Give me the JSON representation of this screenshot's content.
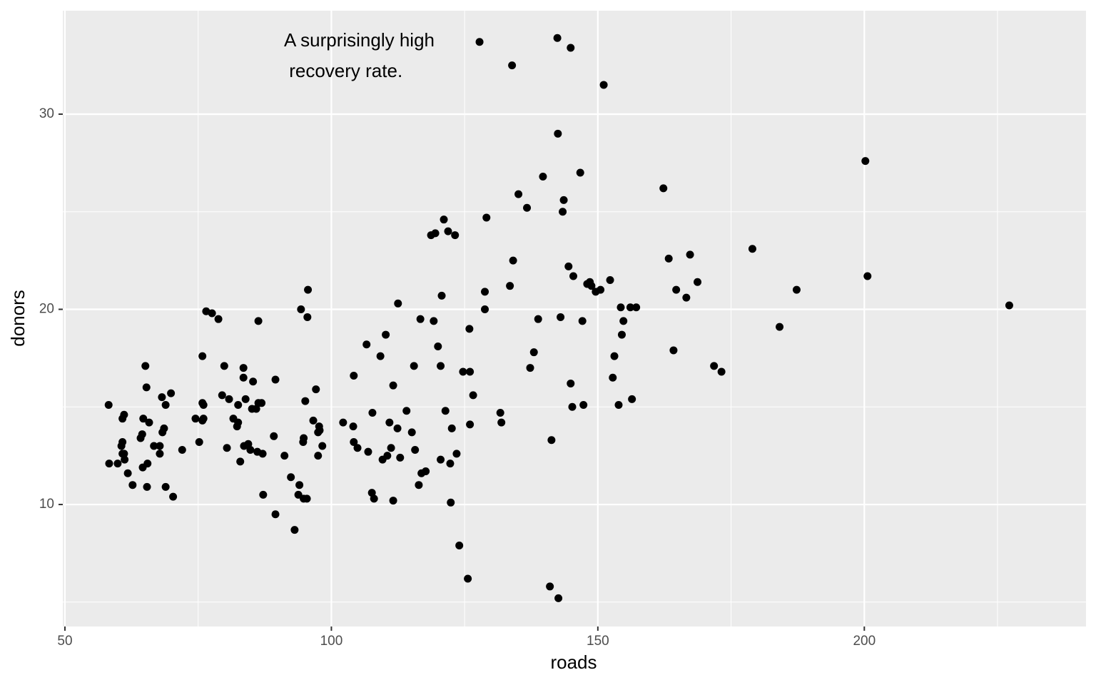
{
  "chart_data": {
    "type": "scatter",
    "x_label": "roads",
    "y_label": "donors",
    "annotation": [
      "A surprisingly high",
      " recovery rate."
    ],
    "color": "#000000",
    "grid": true,
    "xlim": [
      49.6,
      241.6
    ],
    "ylim": [
      3.75,
      35.3
    ],
    "xticks": [
      50,
      100,
      150,
      200
    ],
    "yticks": [
      10,
      20,
      30
    ],
    "xminor": [
      75,
      125,
      175,
      225
    ],
    "yminor": [
      5,
      15,
      25
    ],
    "x": [
      58.2,
      58.3,
      59.9,
      60.6,
      60.8,
      60.8,
      61.1,
      61.1,
      60.8,
      61.2,
      61.8,
      62.7,
      64.2,
      64.5,
      64.7,
      64.6,
      65.1,
      65.3,
      65.4,
      65.5,
      65.8,
      66.7,
      67.8,
      67.8,
      68.2,
      68.3,
      68.6,
      68.9,
      68.9,
      69.9,
      70.3,
      72.0,
      74.5,
      75.2,
      75.8,
      75.8,
      76.0,
      76.0,
      75.8,
      76.5,
      77.6,
      78.8,
      79.5,
      79.9,
      80.4,
      80.8,
      81.6,
      82.3,
      82.5,
      82.5,
      82.9,
      83.5,
      83.5,
      83.6,
      83.9,
      84.4,
      84.8,
      85.1,
      85.3,
      85.9,
      86.1,
      86.3,
      86.3,
      86.9,
      87.1,
      87.2,
      89.2,
      89.5,
      89.5,
      91.2,
      92.4,
      93.1,
      93.8,
      94.0,
      94.3,
      94.7,
      94.8,
      94.8,
      95.1,
      95.4,
      95.5,
      95.6,
      96.6,
      97.1,
      97.5,
      97.5,
      97.7,
      97.8,
      98.3,
      102.2,
      104.1,
      104.2,
      104.2,
      104.9,
      106.6,
      106.9,
      107.6,
      107.7,
      108.0,
      109.2,
      109.6,
      110.2,
      110.5,
      110.9,
      111.2,
      111.6,
      111.6,
      112.4,
      112.5,
      112.9,
      114.1,
      115.1,
      115.5,
      115.7,
      116.4,
      116.7,
      116.9,
      117.7,
      118.7,
      119.2,
      119.5,
      120.0,
      120.5,
      120.7,
      120.5,
      121.1,
      121.4,
      121.9,
      122.3,
      122.4,
      122.6,
      123.2,
      123.5,
      124.0,
      124.7,
      125.6,
      125.9,
      126.0,
      126.0,
      126.6,
      127.8,
      128.8,
      128.8,
      129.1,
      131.7,
      131.9,
      133.5,
      133.9,
      134.1,
      135.1,
      136.7,
      137.3,
      138.0,
      138.8,
      139.7,
      141.0,
      141.3,
      142.4,
      142.5,
      142.6,
      143.0,
      143.4,
      143.6,
      144.5,
      144.9,
      144.9,
      145.2,
      145.4,
      146.7,
      147.1,
      147.3,
      148.0,
      148.5,
      148.8,
      149.6,
      150.5,
      151.1,
      152.3,
      152.8,
      153.1,
      153.9,
      154.3,
      154.5,
      154.8,
      156.1,
      156.4,
      157.2,
      162.3,
      163.3,
      164.2,
      164.7,
      166.6,
      167.3,
      168.7,
      171.8,
      173.2,
      179.0,
      184.1,
      187.3,
      200.2,
      200.6,
      227.2
    ],
    "y": [
      15.1,
      12.1,
      12.1,
      13.0,
      13.2,
      12.6,
      12.6,
      14.6,
      14.4,
      12.3,
      11.6,
      11.0,
      13.4,
      13.6,
      14.4,
      11.9,
      17.1,
      16.0,
      10.9,
      12.1,
      14.2,
      13.0,
      13.0,
      12.6,
      15.5,
      13.7,
      13.9,
      15.1,
      10.9,
      15.7,
      10.4,
      12.8,
      14.4,
      13.2,
      17.6,
      15.2,
      15.1,
      14.4,
      14.3,
      19.9,
      19.8,
      19.5,
      15.6,
      17.1,
      12.9,
      15.4,
      14.4,
      14.0,
      14.2,
      15.1,
      12.2,
      17.0,
      16.5,
      13.0,
      15.4,
      13.1,
      12.8,
      14.9,
      16.3,
      14.9,
      12.7,
      19.4,
      15.2,
      15.2,
      12.6,
      10.5,
      13.5,
      16.4,
      9.5,
      12.5,
      11.4,
      8.7,
      10.5,
      11.0,
      20.0,
      13.2,
      13.4,
      10.3,
      15.3,
      10.3,
      19.6,
      21.0,
      14.3,
      15.9,
      13.7,
      12.5,
      14.0,
      13.8,
      13.0,
      14.2,
      14.0,
      16.6,
      13.2,
      12.9,
      18.2,
      12.7,
      10.6,
      14.7,
      10.3,
      17.6,
      12.3,
      18.7,
      12.5,
      14.2,
      12.9,
      16.1,
      10.2,
      13.9,
      20.3,
      12.4,
      14.8,
      13.7,
      17.1,
      12.8,
      11.0,
      19.5,
      11.6,
      11.7,
      23.8,
      19.4,
      23.9,
      18.1,
      17.1,
      20.7,
      12.3,
      24.6,
      14.8,
      24.0,
      12.1,
      10.1,
      13.9,
      23.8,
      12.6,
      7.9,
      16.8,
      6.2,
      19.0,
      16.8,
      14.1,
      15.6,
      33.7,
      20.0,
      20.9,
      24.7,
      14.7,
      14.2,
      21.2,
      32.5,
      22.5,
      25.9,
      25.2,
      17.0,
      17.8,
      19.5,
      26.8,
      5.8,
      13.3,
      33.9,
      29.0,
      5.2,
      19.6,
      25.0,
      25.6,
      22.2,
      33.4,
      16.2,
      15.0,
      21.7,
      27.0,
      19.4,
      15.1,
      21.3,
      21.4,
      21.2,
      20.9,
      21.0,
      31.5,
      21.5,
      16.5,
      17.6,
      15.1,
      20.1,
      18.7,
      19.4,
      20.1,
      15.4,
      20.1,
      26.2,
      22.6,
      17.9,
      21.0,
      20.6,
      22.8,
      21.4,
      17.1,
      16.8,
      23.1,
      19.1,
      21.0,
      27.6,
      21.7,
      20.2
    ]
  }
}
